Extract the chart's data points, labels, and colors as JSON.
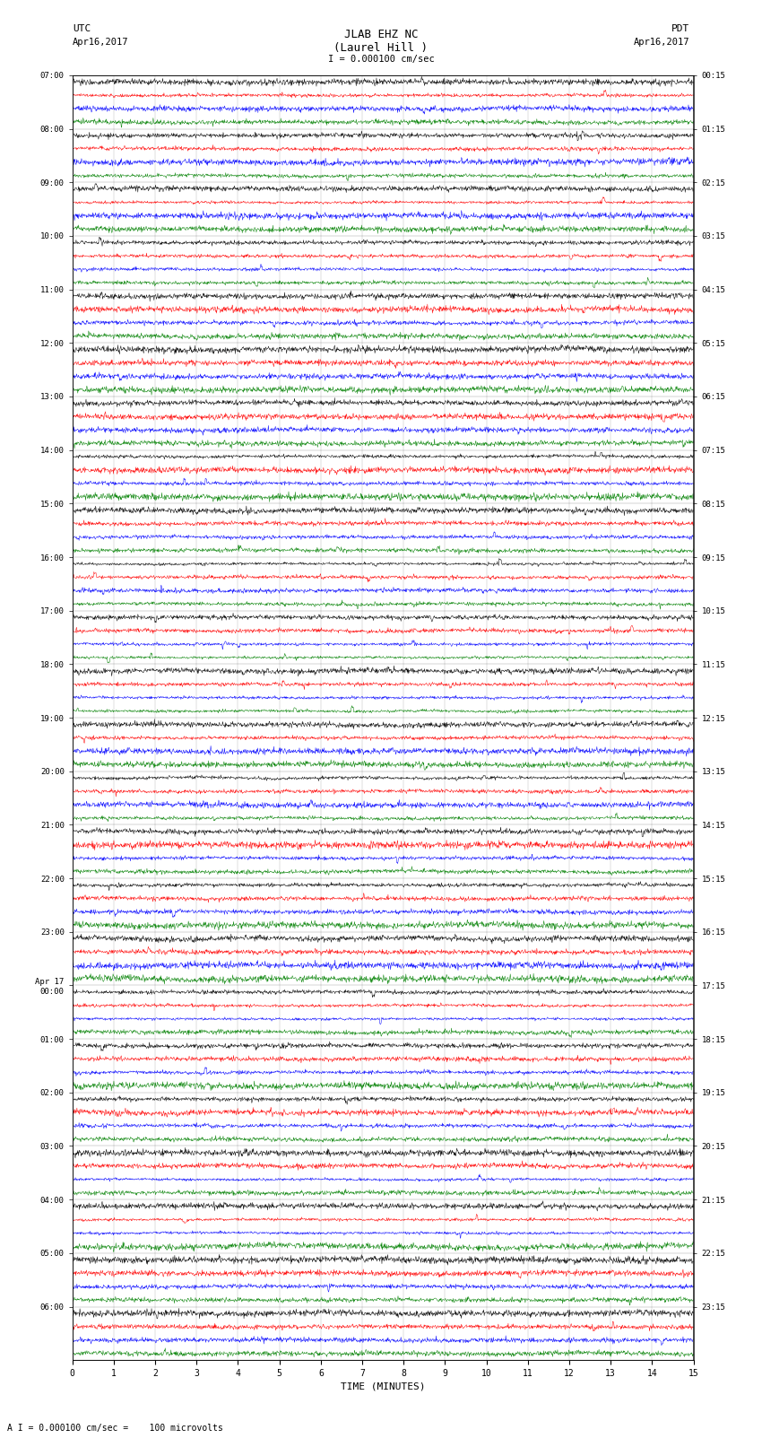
{
  "title_line1": "JLAB EHZ NC",
  "title_line2": "(Laurel Hill )",
  "scale_label": "I = 0.000100 cm/sec",
  "footer_label": "A I = 0.000100 cm/sec =    100 microvolts",
  "utc_label": "UTC",
  "pdt_label": "PDT",
  "date_left": "Apr16,2017",
  "date_right": "Apr16,2017",
  "xlabel": "TIME (MINUTES)",
  "left_times": [
    "07:00",
    "08:00",
    "09:00",
    "10:00",
    "11:00",
    "12:00",
    "13:00",
    "14:00",
    "15:00",
    "16:00",
    "17:00",
    "18:00",
    "19:00",
    "20:00",
    "21:00",
    "22:00",
    "23:00",
    "Apr 17\n00:00",
    "01:00",
    "02:00",
    "03:00",
    "04:00",
    "05:00",
    "06:00"
  ],
  "right_times": [
    "00:15",
    "01:15",
    "02:15",
    "03:15",
    "04:15",
    "05:15",
    "06:15",
    "07:15",
    "08:15",
    "09:15",
    "10:15",
    "11:15",
    "12:15",
    "13:15",
    "14:15",
    "15:15",
    "16:15",
    "17:15",
    "18:15",
    "19:15",
    "20:15",
    "21:15",
    "22:15",
    "23:15"
  ],
  "n_rows": 24,
  "traces_per_row": 4,
  "colors": [
    "black",
    "red",
    "blue",
    "green"
  ],
  "bg_color": "#ffffff",
  "plot_bg": "#ffffff",
  "minutes": 15,
  "figsize": [
    8.5,
    16.13
  ],
  "dpi": 100
}
